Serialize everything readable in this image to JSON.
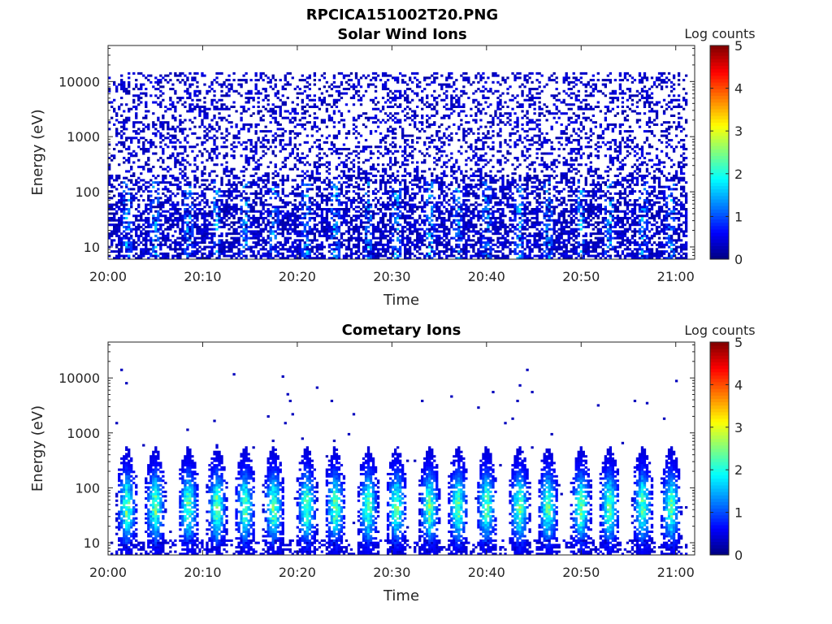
{
  "figure": {
    "title": "RPCICA151002T20.PNG"
  },
  "chart_data": [
    {
      "type": "heatmap",
      "title": "Solar Wind Ions",
      "xlabel": "Time",
      "ylabel": "Energy (eV)",
      "x_ticks": [
        "20:00",
        "20:10",
        "20:20",
        "20:30",
        "20:40",
        "20:50",
        "21:00"
      ],
      "x_range": [
        "20:00",
        "21:02"
      ],
      "y_scale": "log",
      "y_ticks": [
        "10",
        "100",
        "1000",
        "10000"
      ],
      "y_range": [
        6,
        45000
      ],
      "colorbar": {
        "label": "Log counts",
        "ticks": [
          "0",
          "1",
          "2",
          "3",
          "4",
          "5"
        ],
        "range": [
          0,
          5
        ],
        "colormap": "jet"
      },
      "description_values": {
        "background_log_counts": 0.3,
        "low_energy_band_ev": [
          8,
          120
        ],
        "peak_log_counts": 2.0,
        "sparse_upper_ev": 15000
      }
    },
    {
      "type": "heatmap",
      "title": "Cometary Ions",
      "xlabel": "Time",
      "ylabel": "Energy (eV)",
      "x_ticks": [
        "20:00",
        "20:10",
        "20:20",
        "20:30",
        "20:40",
        "20:50",
        "21:00"
      ],
      "x_range": [
        "20:00",
        "21:02"
      ],
      "y_scale": "log",
      "y_ticks": [
        "10",
        "100",
        "1000",
        "10000"
      ],
      "y_range": [
        6,
        45000
      ],
      "colorbar": {
        "label": "Log counts",
        "ticks": [
          "0",
          "1",
          "2",
          "3",
          "4",
          "5"
        ],
        "range": [
          0,
          5
        ],
        "colormap": "jet"
      },
      "description_values": {
        "burst_minutes": [
          2,
          5,
          8.5,
          11.5,
          14.5,
          17.5,
          21,
          24,
          27.5,
          30.5,
          34,
          37,
          40,
          43.5,
          46.5,
          50,
          53,
          56.5,
          59.5
        ],
        "burst_energy_ev": [
          8,
          500
        ],
        "peak_log_counts": 3.0
      }
    }
  ]
}
